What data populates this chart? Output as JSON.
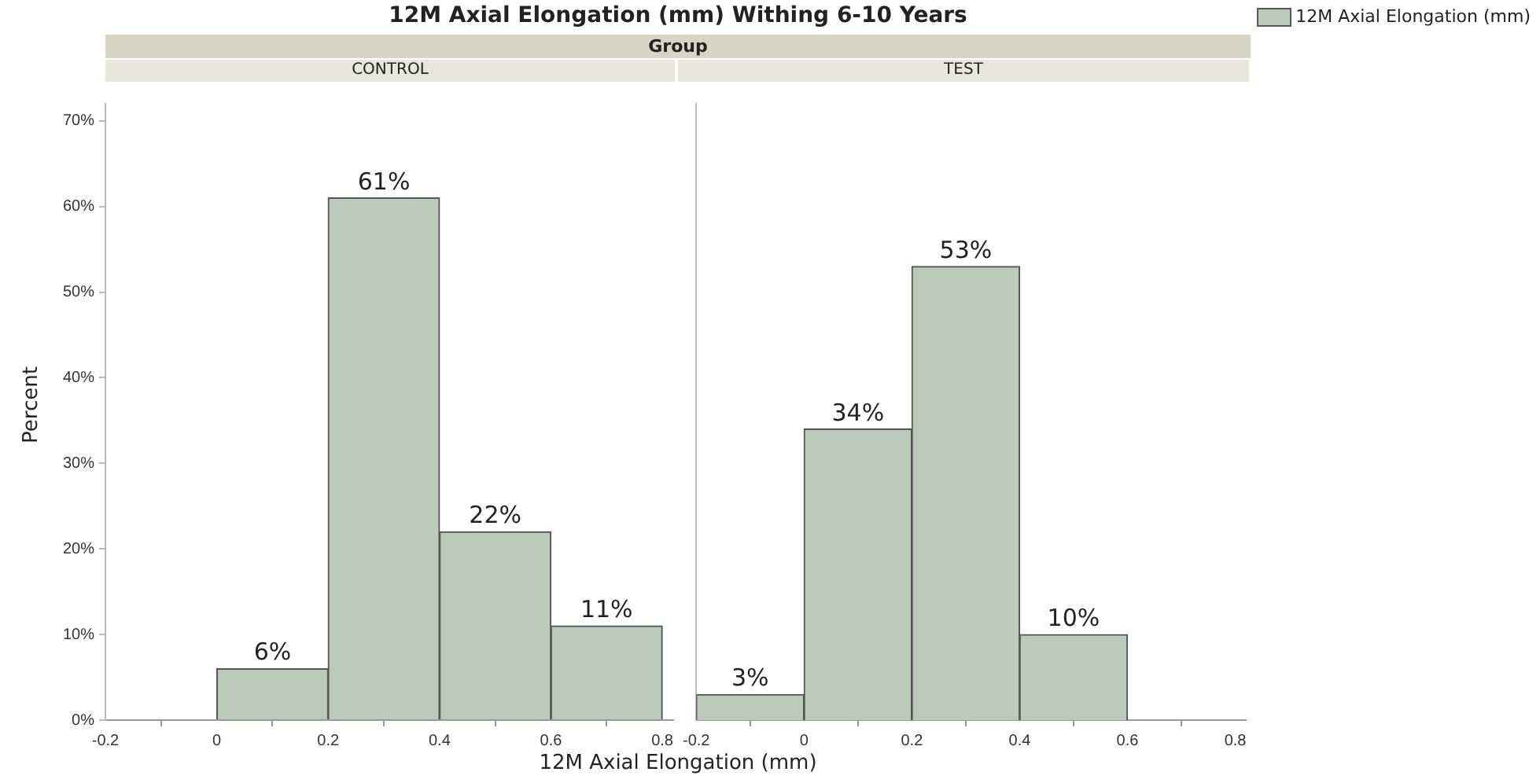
{
  "chart_data": [
    {
      "type": "histogram",
      "title": "12M Axial Elongation (mm) Withing 6-10 Years",
      "subtitle": "Group",
      "annotations": [
        "CONTROL"
      ],
      "xlabel": "12M Axial Elongation (mm)",
      "ylabel": "Percent",
      "bins": [
        0,
        0.2,
        0.4,
        0.6,
        0.8
      ],
      "series": [
        {
          "color": "#bacbba",
          "values": [
            6,
            61,
            22,
            11
          ],
          "value_labels": [
            "6%",
            "61%",
            "22%",
            "11%"
          ]
        }
      ],
      "xlim": [
        -0.2,
        0.82
      ],
      "xticks": [
        -0.2,
        0,
        0.2,
        0.4,
        0.6,
        0.8
      ],
      "ylim": [
        0,
        72
      ],
      "yticks": [
        {
          "value": 0,
          "label": "0%"
        },
        {
          "value": 10,
          "label": "10%"
        },
        {
          "value": 20,
          "label": "20%"
        },
        {
          "value": 30,
          "label": "30%"
        },
        {
          "value": 40,
          "label": "40%"
        },
        {
          "value": 50,
          "label": "50%"
        },
        {
          "value": 60,
          "label": "60%"
        },
        {
          "value": 70,
          "label": "70%"
        }
      ],
      "grid": false
    },
    {
      "type": "histogram",
      "annotations": [
        "TEST"
      ],
      "bins": [
        -0.2,
        0,
        0.2,
        0.4,
        0.6
      ],
      "series": [
        {
          "name": "12M Axial Elongation (mm)",
          "color": "#bacbba",
          "values": [
            3,
            34,
            53,
            10
          ],
          "value_labels": [
            "3%",
            "34%",
            "53%",
            "10%"
          ]
        }
      ],
      "xlim": [
        -0.2,
        0.82
      ],
      "xticks": [
        -0.2,
        0,
        0.2,
        0.4,
        0.6,
        0.8
      ],
      "ylim": [
        0,
        72
      ],
      "grid": false,
      "tick_labels": "x",
      "legend": "right"
    }
  ]
}
